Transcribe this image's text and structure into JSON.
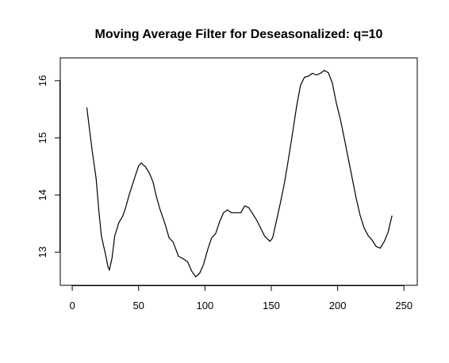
{
  "chart_data": {
    "type": "line",
    "title": "Moving Average Filter for Deseasonalized: q=10",
    "x": [
      11,
      15,
      18,
      20,
      22,
      25,
      27,
      28,
      30,
      32,
      35,
      38,
      40,
      43,
      47,
      50,
      52,
      55,
      58,
      61,
      63,
      66,
      70,
      73,
      76,
      80,
      84,
      87,
      90,
      93,
      96,
      99,
      102,
      105,
      108,
      111,
      114,
      117,
      120,
      124,
      127,
      130,
      133,
      136,
      139,
      142,
      145,
      149,
      151,
      154,
      157,
      160,
      163,
      166,
      169,
      172,
      175,
      178,
      181,
      184,
      187,
      190,
      193,
      196,
      199,
      202,
      205,
      208,
      211,
      214,
      217,
      220,
      223,
      226,
      229,
      232,
      235,
      238,
      241
    ],
    "series": [
      {
        "color": "#000000",
        "values": [
          15.53,
          14.78,
          14.29,
          13.74,
          13.28,
          12.97,
          12.74,
          12.69,
          12.9,
          13.28,
          13.51,
          13.63,
          13.76,
          14.01,
          14.3,
          14.51,
          14.56,
          14.5,
          14.39,
          14.22,
          14.01,
          13.76,
          13.49,
          13.25,
          13.18,
          12.93,
          12.88,
          12.83,
          12.67,
          12.57,
          12.63,
          12.79,
          13.04,
          13.25,
          13.32,
          13.53,
          13.69,
          13.74,
          13.69,
          13.69,
          13.69,
          13.81,
          13.78,
          13.67,
          13.56,
          13.42,
          13.28,
          13.19,
          13.25,
          13.56,
          13.88,
          14.22,
          14.64,
          15.08,
          15.54,
          15.92,
          16.06,
          16.08,
          16.13,
          16.1,
          16.13,
          16.18,
          16.14,
          15.96,
          15.61,
          15.33,
          14.99,
          14.64,
          14.29,
          13.94,
          13.64,
          13.42,
          13.29,
          13.21,
          13.1,
          13.07,
          13.18,
          13.35,
          13.64
        ]
      }
    ],
    "xlim": [
      -9,
      260
    ],
    "xticks": [
      0,
      50,
      100,
      150,
      200,
      250
    ],
    "ylim": [
      12.42,
      16.4
    ],
    "yticks": [
      13,
      14,
      15,
      16
    ]
  }
}
